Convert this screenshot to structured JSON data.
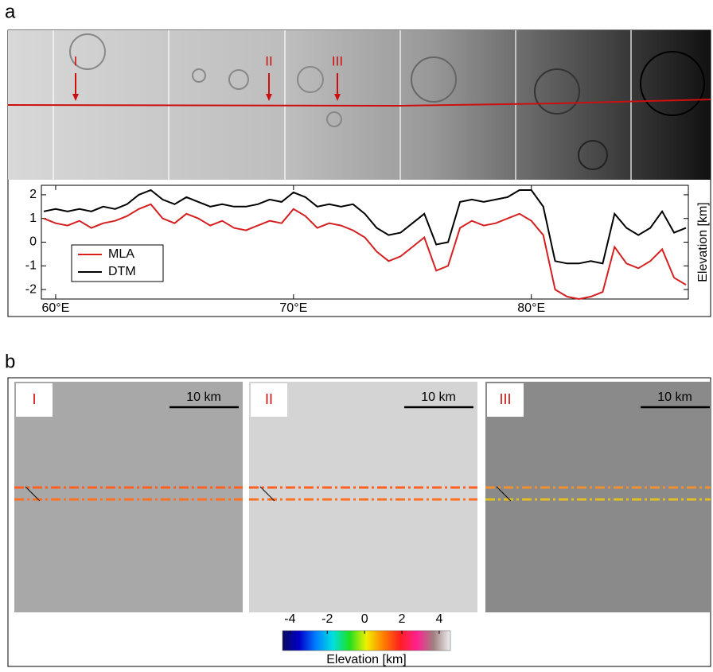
{
  "panel_labels": [
    "a",
    "b"
  ],
  "strip_markers": [
    "I",
    "II",
    "III"
  ],
  "insets": [
    {
      "label": "I",
      "scale": "10 km"
    },
    {
      "label": "II",
      "scale": "10 km"
    },
    {
      "label": "III",
      "scale": "10 km"
    }
  ],
  "chart_data": [
    {
      "type": "line",
      "x_label_unit": null,
      "x": [
        59.5,
        60,
        60.5,
        61,
        61.5,
        62,
        62.5,
        63,
        63.5,
        64,
        64.5,
        65,
        65.5,
        66,
        66.5,
        67,
        67.5,
        68,
        68.5,
        69,
        69.5,
        70,
        70.5,
        71,
        71.5,
        72,
        72.5,
        73,
        73.5,
        74,
        74.5,
        75,
        75.5,
        76,
        76.5,
        77,
        77.5,
        78,
        78.5,
        79,
        79.5,
        80,
        80.5,
        81,
        81.5,
        82,
        82.5,
        83,
        83.5,
        84,
        84.5,
        85,
        85.5,
        86,
        86.5
      ],
      "series": [
        {
          "name": "MLA",
          "color": "#d42020",
          "values": [
            1.0,
            0.8,
            0.7,
            0.9,
            0.6,
            0.8,
            0.9,
            1.1,
            1.4,
            1.6,
            1.0,
            0.8,
            1.2,
            1.0,
            0.7,
            0.9,
            0.6,
            0.5,
            0.7,
            0.9,
            0.8,
            1.4,
            1.1,
            0.6,
            0.8,
            0.7,
            0.5,
            0.2,
            -0.4,
            -0.8,
            -0.6,
            -0.2,
            0.2,
            -1.2,
            -1.0,
            0.6,
            0.9,
            0.7,
            0.8,
            1.0,
            1.2,
            0.9,
            0.3,
            -2.0,
            -2.3,
            -2.4,
            -2.3,
            -2.1,
            -0.2,
            -0.9,
            -1.1,
            -0.8,
            -0.3,
            -1.5,
            -1.8
          ]
        },
        {
          "name": "DTM",
          "color": "#000000",
          "values": [
            1.3,
            1.4,
            1.3,
            1.4,
            1.3,
            1.5,
            1.4,
            1.6,
            2.0,
            2.2,
            1.8,
            1.6,
            1.9,
            1.7,
            1.5,
            1.6,
            1.5,
            1.5,
            1.6,
            1.8,
            1.7,
            2.1,
            1.9,
            1.5,
            1.6,
            1.5,
            1.6,
            1.2,
            0.6,
            0.3,
            0.4,
            0.8,
            1.2,
            -0.1,
            0.0,
            1.7,
            1.8,
            1.7,
            1.8,
            1.9,
            2.2,
            2.2,
            1.5,
            -0.8,
            -0.9,
            -0.9,
            -0.8,
            -0.9,
            1.2,
            0.6,
            0.3,
            0.6,
            1.3,
            0.4,
            0.6
          ]
        }
      ],
      "xlim": [
        59.4,
        86.6
      ],
      "xticks": [
        {
          "value": 60,
          "label": "60°E"
        },
        {
          "value": 70,
          "label": "70°E"
        },
        {
          "value": 80,
          "label": "80°E"
        }
      ],
      "ylim": [
        -2.4,
        2.4
      ],
      "yticks": [
        -2,
        -1,
        0,
        1,
        2
      ],
      "y_label": "Elevation [km]",
      "legend": "lower left"
    },
    {
      "type": "colorbar",
      "xlim": [
        -4.4,
        4.6
      ],
      "xticks": [
        -4,
        -2,
        0,
        2,
        4
      ],
      "x_label": "Elevation [km]",
      "colors": [
        "#0a0a60",
        "#0000c8",
        "#0080ff",
        "#00e0e0",
        "#20e020",
        "#f0f000",
        "#ff8000",
        "#ff2020",
        "#ff2090",
        "#a08080",
        "#f0f0f0"
      ]
    }
  ]
}
